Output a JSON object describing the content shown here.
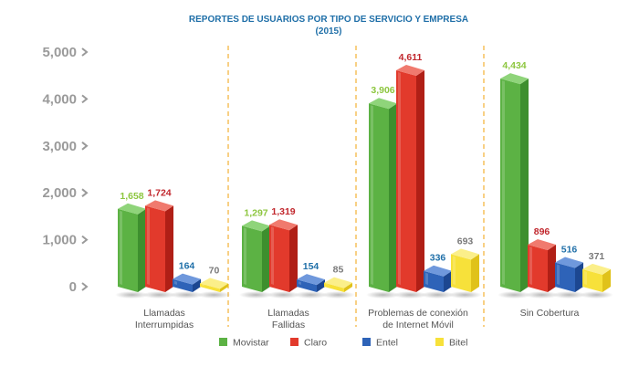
{
  "chart_data": {
    "type": "bar",
    "title": "REPORTES DE USUARIOS POR TIPO DE SERVICIO Y EMPRESA",
    "subtitle": "(2015)",
    "categories": [
      [
        "Llamadas",
        "Interrumpidas"
      ],
      [
        "Llamadas",
        "Fallidas"
      ],
      [
        "Problemas de conexión",
        "de Internet Móvil"
      ],
      [
        "Sin Cobertura"
      ]
    ],
    "series": [
      {
        "name": "Movistar",
        "values": [
          1658,
          1297,
          3906,
          4434
        ],
        "labels": [
          "1,658",
          "1,297",
          "3,906",
          "4,434"
        ]
      },
      {
        "name": "Claro",
        "values": [
          1724,
          1319,
          4611,
          896
        ],
        "labels": [
          "1,724",
          "1,319",
          "4,611",
          "896"
        ]
      },
      {
        "name": "Entel",
        "values": [
          164,
          154,
          336,
          516
        ],
        "labels": [
          "164",
          "154",
          "336",
          "516"
        ]
      },
      {
        "name": "Bitel",
        "values": [
          70,
          85,
          693,
          371
        ],
        "labels": [
          "70",
          "85",
          "693",
          "371"
        ]
      }
    ],
    "yticks": [
      "0",
      "1,000",
      "2,000",
      "3,000",
      "4,000",
      "5,000"
    ],
    "ylim": [
      0,
      5000
    ],
    "grid": false,
    "legend": "bottom",
    "colors": {
      "Movistar": {
        "front": "#5cb244",
        "side": "#3d8f2e",
        "top": "#8fd47a",
        "label": "#8dc63f"
      },
      "Claro": {
        "front": "#e23a2c",
        "side": "#b01f16",
        "top": "#f07a6e",
        "label": "#c1272d"
      },
      "Entel": {
        "front": "#2e63b8",
        "side": "#1c4791",
        "top": "#6f98dc",
        "label": "#1f6fa8"
      },
      "Bitel": {
        "front": "#f7e13a",
        "side": "#e0c21a",
        "top": "#fbef8a",
        "label": "#7a7a7a"
      }
    }
  }
}
